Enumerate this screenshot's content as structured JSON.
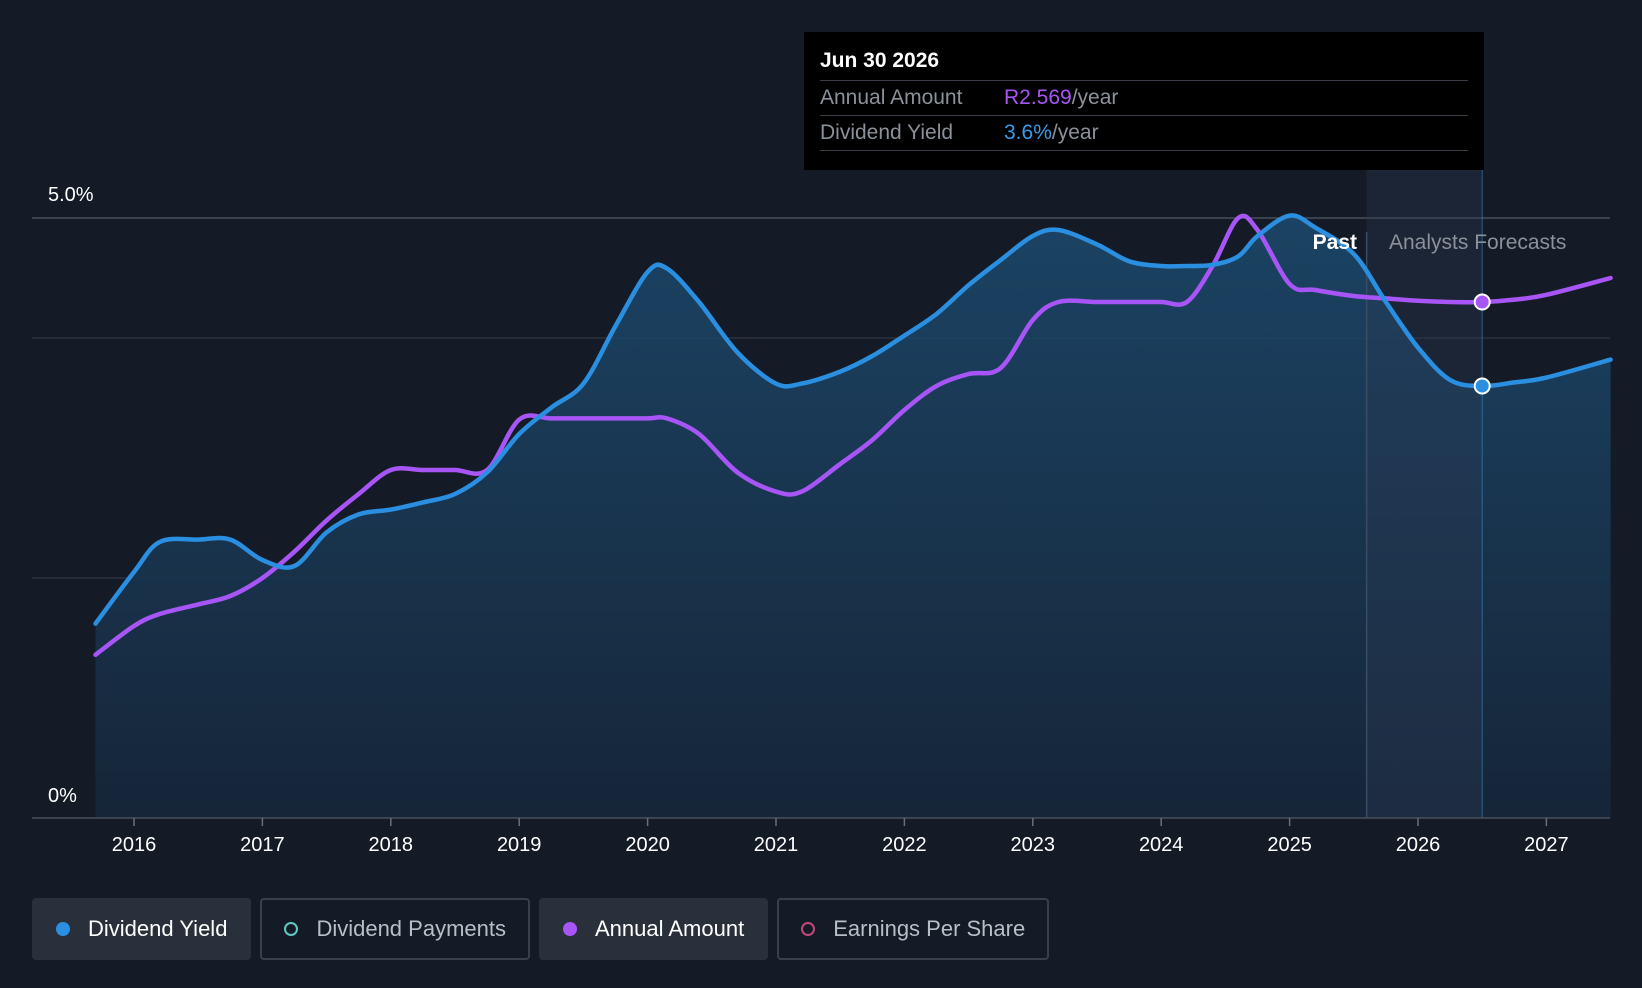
{
  "chart_data": {
    "type": "line",
    "x": [
      2015.7,
      2016.0,
      2016.2,
      2016.5,
      2016.75,
      2017.0,
      2017.25,
      2017.5,
      2017.75,
      2018.0,
      2018.25,
      2018.5,
      2018.75,
      2019.0,
      2019.25,
      2019.5,
      2019.75,
      2020.0,
      2020.15,
      2020.4,
      2020.7,
      2021.0,
      2021.2,
      2021.5,
      2021.75,
      2022.0,
      2022.25,
      2022.5,
      2022.75,
      2023.0,
      2023.2,
      2023.5,
      2023.75,
      2024.0,
      2024.2,
      2024.4,
      2024.6,
      2024.75,
      2025.0,
      2025.2,
      2025.5,
      2025.75,
      2026.0,
      2026.25,
      2026.5,
      2026.75,
      2027.0,
      2027.5
    ],
    "ylim": [
      0,
      5.0
    ],
    "y_ticks": [
      "5.0%",
      "0%"
    ],
    "x_ticks": [
      "2016",
      "2017",
      "2018",
      "2019",
      "2020",
      "2021",
      "2022",
      "2023",
      "2024",
      "2025",
      "2026",
      "2027"
    ],
    "x_tick_values": [
      2016,
      2017,
      2018,
      2019,
      2020,
      2021,
      2022,
      2023,
      2024,
      2025,
      2026,
      2027
    ],
    "series": [
      {
        "name": "Dividend Yield",
        "color": "#2a8fe0",
        "values": [
          1.62,
          2.05,
          2.3,
          2.32,
          2.32,
          2.15,
          2.1,
          2.38,
          2.53,
          2.57,
          2.63,
          2.7,
          2.88,
          3.2,
          3.42,
          3.62,
          4.1,
          4.55,
          4.58,
          4.3,
          3.88,
          3.62,
          3.62,
          3.72,
          3.85,
          4.02,
          4.2,
          4.44,
          4.65,
          4.85,
          4.9,
          4.78,
          4.64,
          4.6,
          4.6,
          4.61,
          4.68,
          4.85,
          5.02,
          4.92,
          4.7,
          4.3,
          3.92,
          3.65,
          3.6,
          3.63,
          3.67,
          3.82
        ]
      },
      {
        "name": "Annual Amount",
        "color": "#a855f7",
        "values": [
          1.36,
          1.6,
          1.7,
          1.78,
          1.85,
          2.0,
          2.22,
          2.48,
          2.7,
          2.9,
          2.9,
          2.9,
          2.9,
          3.32,
          3.33,
          3.33,
          3.33,
          3.33,
          3.33,
          3.2,
          2.88,
          2.72,
          2.72,
          2.95,
          3.15,
          3.4,
          3.6,
          3.7,
          3.75,
          4.15,
          4.3,
          4.3,
          4.3,
          4.3,
          4.3,
          4.6,
          5.0,
          4.9,
          4.45,
          4.4,
          4.35,
          4.33,
          4.31,
          4.3,
          4.3,
          4.32,
          4.36,
          4.5
        ]
      }
    ],
    "past_forecast_boundary": 2025.6,
    "forecast_end": 2026.5,
    "region_labels": {
      "past": "Past",
      "forecast": "Analysts Forecasts"
    },
    "highlight_x": 2026.5,
    "grid": true
  },
  "tooltip": {
    "date": "Jun 30 2026",
    "rows": [
      {
        "label": "Annual Amount",
        "value": "R2.569",
        "unit": "/year"
      },
      {
        "label": "Dividend Yield",
        "value": "3.6%",
        "unit": "/year"
      }
    ]
  },
  "legend": [
    {
      "label": "Dividend Yield",
      "color": "#2a8fe0",
      "active": true,
      "filled": true
    },
    {
      "label": "Dividend Payments",
      "color": "#5fc8c0",
      "active": false,
      "filled": false
    },
    {
      "label": "Annual Amount",
      "color": "#a855f7",
      "active": true,
      "filled": true
    },
    {
      "label": "Earnings Per Share",
      "color": "#c2477a",
      "active": false,
      "filled": false
    }
  ]
}
